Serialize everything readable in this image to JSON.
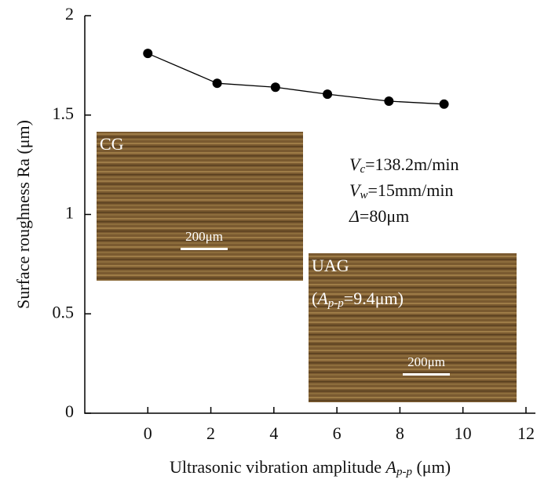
{
  "chart_data": {
    "type": "line",
    "x_label": {
      "text": "Ultrasonic vibration amplitude ",
      "symbol": "A",
      "sub": "p-p",
      "unit": " (μm)"
    },
    "y_label": "Surface roughness Ra (μm)",
    "x": [
      0,
      2.2,
      4.05,
      5.7,
      7.65,
      9.4
    ],
    "series": [
      {
        "color": "#000000",
        "values": [
          1.81,
          1.66,
          1.64,
          1.605,
          1.57,
          1.555
        ]
      }
    ],
    "xlim": [
      -2,
      12.3
    ],
    "xticks": [
      0,
      2,
      4,
      6,
      8,
      10,
      12
    ],
    "ylim": [
      0,
      2
    ],
    "yticks": [
      0,
      0.5,
      1,
      1.5,
      2
    ],
    "conditions": [
      {
        "symbol": "V",
        "sub": "c",
        "text": "=138.2m/min"
      },
      {
        "symbol": "V",
        "sub": "w",
        "text": "=15mm/min"
      },
      {
        "symbol": "Δ",
        "sub": "",
        "text": "=80μm"
      }
    ],
    "insets": [
      {
        "label": "CG",
        "scale_bar": "200μm"
      },
      {
        "label": "UAG",
        "open": "(",
        "symbol": "A",
        "sub": "p-p",
        "text": "=9.4μm)",
        "scale_bar": "200μm"
      }
    ]
  }
}
